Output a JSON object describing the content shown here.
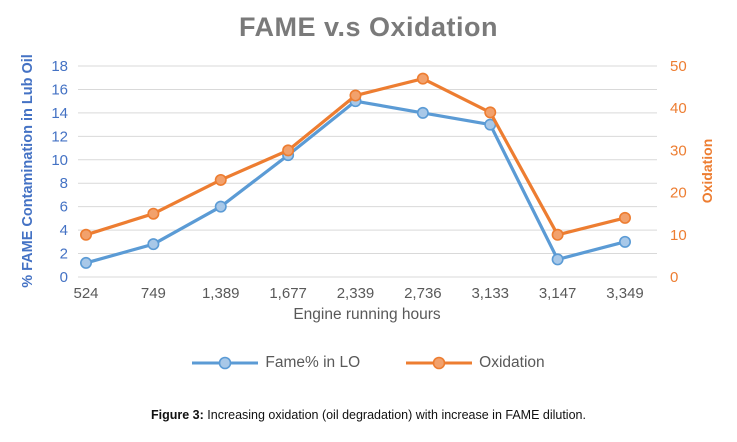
{
  "figure": {
    "caption_label": "Figure 3:",
    "caption_text": " Increasing oxidation (oil degradation) with increase in FAME dilution."
  },
  "chart_data": {
    "type": "line",
    "title": "FAME v.s Oxidation",
    "xlabel": "Engine running hours",
    "categories": [
      "524",
      "749",
      "1,389",
      "1,677",
      "2,339",
      "2,736",
      "3,133",
      "3,147",
      "3,349"
    ],
    "series": [
      {
        "name": "Fame% in LO",
        "axis": "left",
        "color": "#5B9BD5",
        "marker_fill": "#A8C8E8",
        "values": [
          1.2,
          2.8,
          6,
          10.4,
          15,
          14,
          13,
          1.5,
          3
        ]
      },
      {
        "name": "Oxidation",
        "axis": "right",
        "color": "#ED7D31",
        "marker_fill": "#F2A16C",
        "values": [
          10,
          15,
          23,
          30,
          43,
          47,
          39,
          10,
          14
        ]
      }
    ],
    "axis_left": {
      "title": "% FAME Contamination in Lub Oil",
      "min": 0,
      "max": 18,
      "step": 2,
      "color": "#4472C4"
    },
    "axis_right": {
      "title": "Oxidation",
      "min": 0,
      "max": 50,
      "step": 10,
      "color": "#ED7D31"
    },
    "grid": true,
    "gridline_color": "#D9D9D9",
    "tick_label_color": "#595959",
    "title_color": "#7A7A7A",
    "legend_position": "bottom"
  }
}
